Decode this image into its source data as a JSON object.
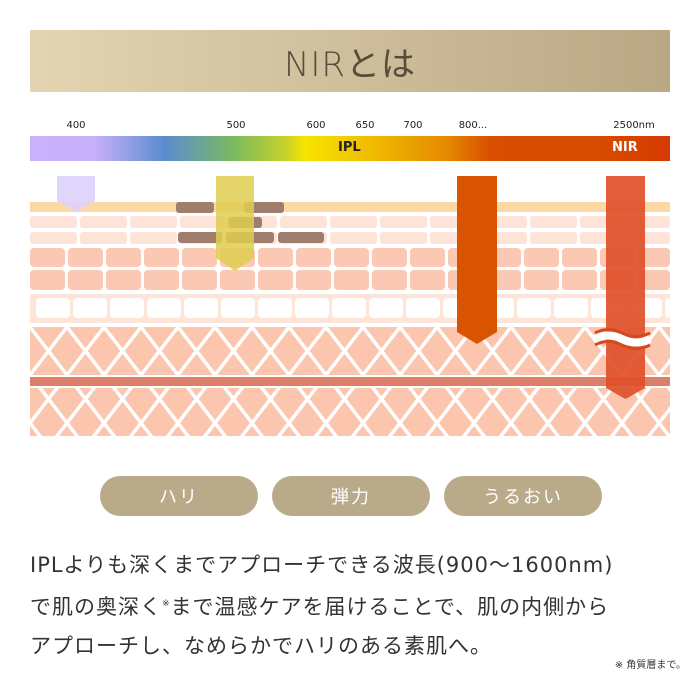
{
  "title": "NIRとは",
  "spectrum": {
    "wavelength_labels": [
      "400",
      "500",
      "600",
      "650",
      "700",
      "800...",
      "2500nm"
    ],
    "ipl_label": "IPL",
    "nir_label": "NIR"
  },
  "colors": {
    "banner_start": "#e3d4b2",
    "banner_end": "#b9a884",
    "pill": "#b9aa8a",
    "ipl_arrow": "#e0cc50",
    "nir_arrow_1": "#d95400",
    "nir_arrow_2": "#e0502a",
    "violet_arrow": "#ddd0fb"
  },
  "benefits": [
    "ハリ",
    "弾力",
    "うるおい"
  ],
  "description": {
    "line1": "IPLよりも深くまでアプローチできる波長(900〜1600nm)",
    "line2a": "で肌の奥深く",
    "line2_mark": "※",
    "line2b": "まで温感ケアを届けることで、肌の内側から",
    "line3": "アプローチし、なめらかでハリのある素肌へ。"
  },
  "footnote": "※ 角質層まで。"
}
